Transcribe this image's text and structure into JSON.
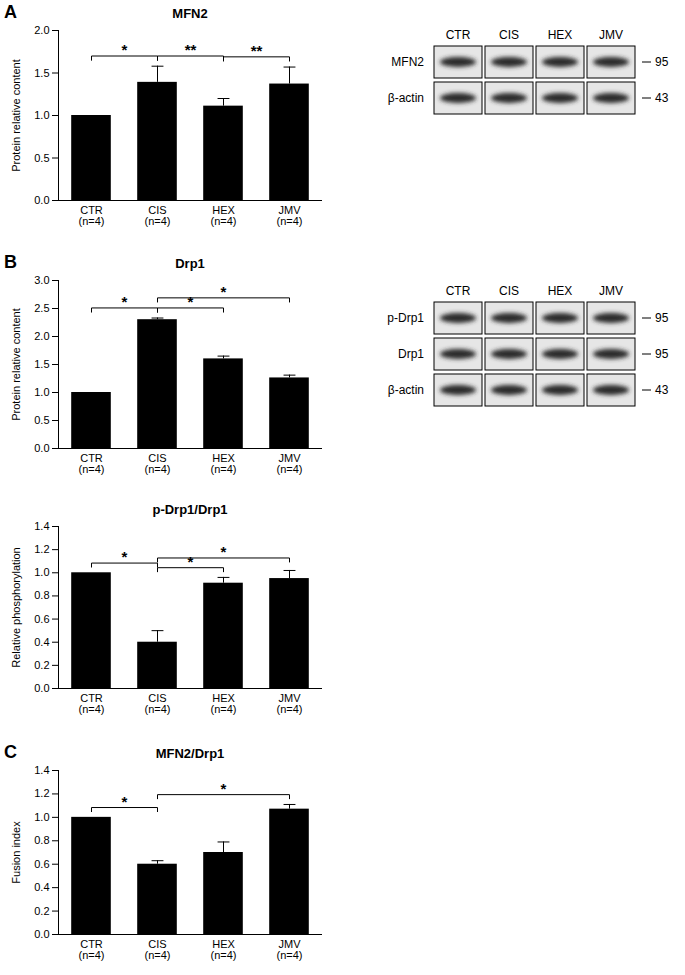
{
  "chart_data": [
    {
      "type": "bar",
      "panel": "A",
      "title": "MFN2",
      "y_label": "Protein relative content",
      "categories": [
        "CTR\n(n=4)",
        "CIS\n(n=4)",
        "HEX\n(n=4)",
        "JMV\n(n=4)"
      ],
      "values": [
        1.0,
        1.39,
        1.11,
        1.37
      ],
      "errors": [
        0,
        0.19,
        0.09,
        0.2
      ],
      "color": "#000000",
      "ylim": [
        0,
        2
      ],
      "yticks": [
        {
          "value": 0,
          "label": "0.0"
        },
        0.5,
        {
          "value": 1,
          "label": "1.0"
        },
        1.5,
        {
          "value": 2,
          "label": "2.0"
        }
      ],
      "significance": [
        {
          "from": 0,
          "to": 1,
          "label": "*"
        },
        {
          "from": 1,
          "to": 2,
          "label": "**"
        },
        {
          "from": 2,
          "to": 3,
          "label": "**"
        }
      ],
      "blot": {
        "lanes": [
          "CTR",
          "CIS",
          "HEX",
          "JMV"
        ],
        "rows": [
          {
            "label": "MFN2",
            "marker": 95
          },
          {
            "label": "β-actin",
            "marker": 43
          }
        ]
      }
    },
    {
      "type": "bar",
      "panel": "B",
      "title": "Drp1",
      "y_label": "Protein relative content",
      "categories": [
        "CTR\n(n=4)",
        "CIS\n(n=4)",
        "HEX\n(n=4)",
        "JMV\n(n=4)"
      ],
      "values": [
        1.0,
        2.3,
        1.6,
        1.26
      ],
      "errors": [
        0,
        0.03,
        0.05,
        0.05
      ],
      "color": "#000000",
      "ylim": [
        0,
        3
      ],
      "yticks": [
        {
          "value": 0,
          "label": "0.0"
        },
        0.5,
        {
          "value": 1,
          "label": "1.0"
        },
        1.5,
        {
          "value": 2,
          "label": "2.0"
        },
        2.5,
        {
          "value": 3,
          "label": "3.0"
        }
      ],
      "significance": [
        {
          "from": 0,
          "to": 1,
          "label": "*"
        },
        {
          "from": 1,
          "to": 2,
          "label": "*"
        },
        {
          "from": 1,
          "to": 3,
          "label": "*"
        }
      ],
      "blot": {
        "lanes": [
          "CTR",
          "CIS",
          "HEX",
          "JMV"
        ],
        "rows": [
          {
            "label": "p-Drp1",
            "marker": 95
          },
          {
            "label": "Drp1",
            "marker": 95
          },
          {
            "label": "β-actin",
            "marker": 43
          }
        ]
      }
    },
    {
      "type": "bar",
      "title": "p-Drp1/Drp1",
      "y_label": "Relative phosphorylation",
      "categories": [
        "CTR\n(n=4)",
        "CIS\n(n=4)",
        "HEX\n(n=4)",
        "JMV\n(n=4)"
      ],
      "values": [
        1.0,
        0.4,
        0.91,
        0.95
      ],
      "errors": [
        0,
        0.1,
        0.05,
        0.07
      ],
      "color": "#000000",
      "ylim": [
        0,
        1.4
      ],
      "yticks": [
        {
          "value": 0,
          "label": "0.0"
        },
        0.2,
        0.4,
        0.6,
        0.8,
        {
          "value": 1,
          "label": "1.0"
        },
        1.2,
        1.4
      ],
      "significance": [
        {
          "from": 0,
          "to": 1,
          "label": "*"
        },
        {
          "from": 1,
          "to": 2,
          "label": "*"
        },
        {
          "from": 1,
          "to": 3,
          "label": "*"
        }
      ]
    },
    {
      "type": "bar",
      "panel": "C",
      "title": "MFN2/Drp1",
      "y_label": "Fusion index",
      "categories": [
        "CTR\n(n=4)",
        "CIS\n(n=4)",
        "HEX\n(n=4)",
        "JMV\n(n=4)"
      ],
      "values": [
        1.0,
        0.6,
        0.7,
        1.07
      ],
      "errors": [
        0,
        0.03,
        0.09,
        0.04
      ],
      "color": "#000000",
      "ylim": [
        0,
        1.4
      ],
      "yticks": [
        {
          "value": 0,
          "label": "0.0"
        },
        0.2,
        0.4,
        0.6,
        0.8,
        {
          "value": 1,
          "label": "1.0"
        },
        1.2,
        1.4
      ],
      "significance": [
        {
          "from": 0,
          "to": 1,
          "label": "*"
        },
        {
          "from": 1,
          "to": 3,
          "label": "*"
        }
      ]
    }
  ]
}
